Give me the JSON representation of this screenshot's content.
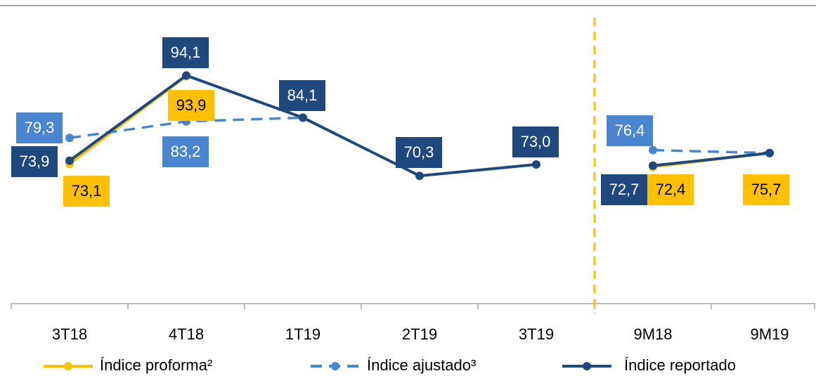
{
  "chart_data": {
    "type": "line",
    "categories": [
      "3T18",
      "4T18",
      "1T19",
      "2T19",
      "3T19",
      "9M18",
      "9M19"
    ],
    "divider_after": "3T19",
    "divider_color": "#FFC000",
    "ylim": [
      40,
      100
    ],
    "series": [
      {
        "name": "Índice proforma²",
        "color": "#FFC000",
        "dash": false,
        "label_text_color": "#000000",
        "values": [
          73.1,
          93.9,
          null,
          null,
          null,
          72.4,
          75.7
        ],
        "value_labels": [
          "73,1",
          "93,9",
          null,
          null,
          null,
          "72,4",
          "75,7"
        ]
      },
      {
        "name": "Índice ajustado³",
        "color": "#4A86D0",
        "dash": true,
        "label_text_color": "#FFFFFF",
        "values": [
          79.3,
          83.2,
          84.1,
          null,
          null,
          76.4,
          75.7
        ],
        "value_labels": [
          "79,3",
          "83,2",
          null,
          null,
          null,
          "76,4",
          null
        ]
      },
      {
        "name": "Índice reportado",
        "color": "#1F497D",
        "dash": false,
        "label_text_color": "#FFFFFF",
        "values": [
          73.9,
          94.1,
          84.1,
          70.3,
          73.0,
          72.7,
          75.7
        ],
        "value_labels": [
          "73,9",
          "94,1",
          "84,1",
          "70,3",
          "73,0",
          "72,7",
          null
        ]
      }
    ]
  }
}
